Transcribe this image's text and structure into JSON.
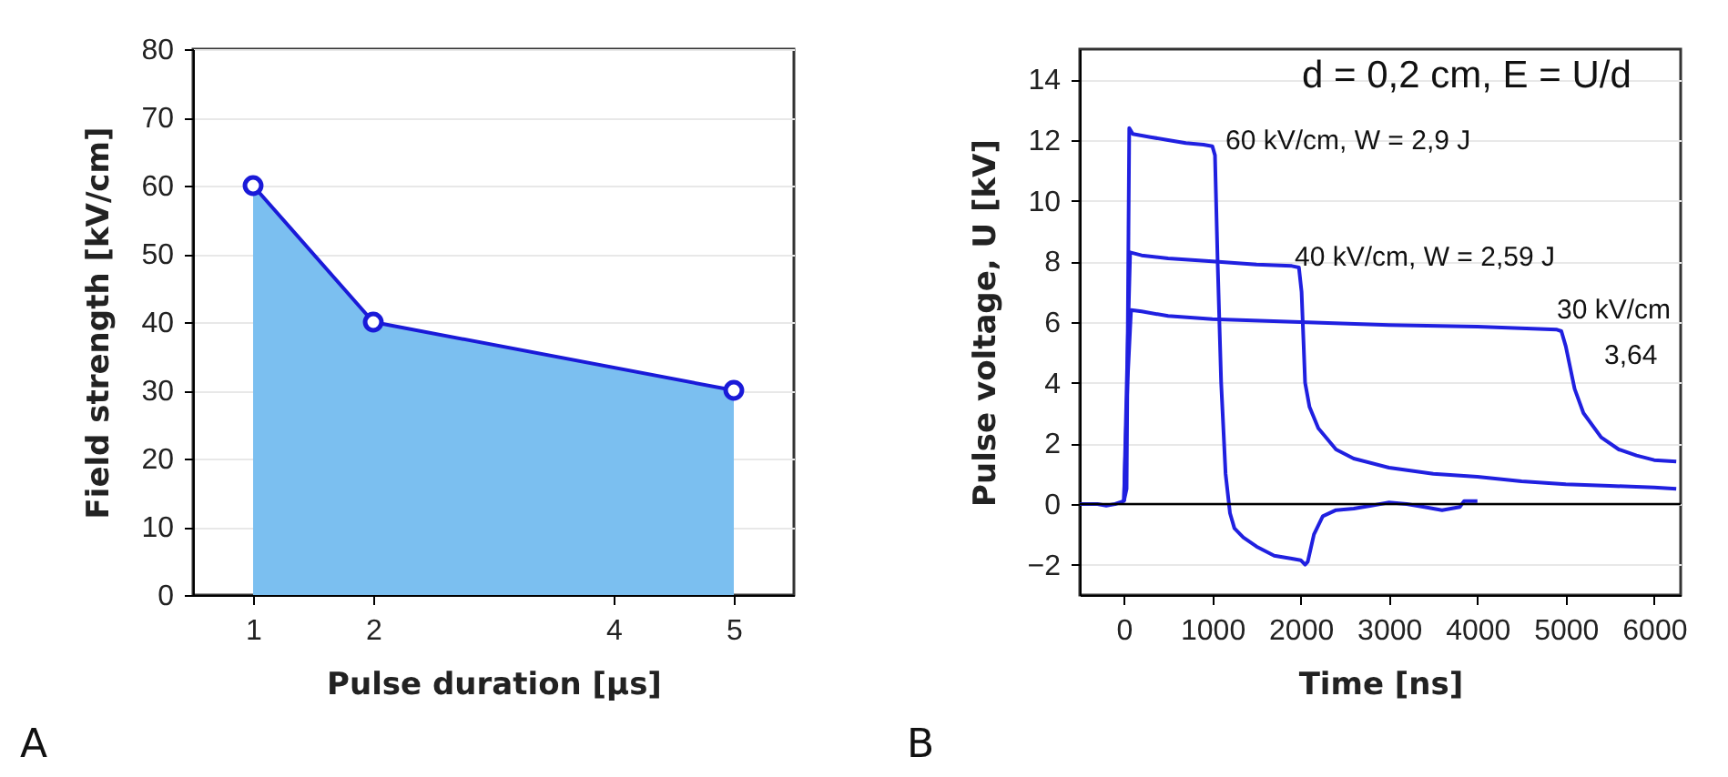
{
  "chart_data": [
    {
      "type": "area",
      "xlabel": "Pulse duration [μs]",
      "ylabel": "Field strength [kV/cm]",
      "annotations": [
        "A"
      ],
      "x": [
        1,
        2,
        5
      ],
      "xlim": [
        0.5,
        5.5
      ],
      "xticks": [
        1,
        2,
        4,
        5
      ],
      "ylim": [
        0,
        80
      ],
      "yticks": [
        0,
        10,
        20,
        30,
        40,
        50,
        60,
        70,
        80
      ],
      "grid": "y",
      "marker": "circle",
      "series": [
        {
          "color": "#7bbff0",
          "values": [
            60,
            40,
            30
          ]
        }
      ]
    },
    {
      "type": "line",
      "xlabel": "Time [ns]",
      "ylabel": "Pulse voltage, U [kV]",
      "xlim": [
        -500,
        6300
      ],
      "xticks": [
        0,
        1000,
        2000,
        3000,
        4000,
        5000,
        6000
      ],
      "ylim": [
        -3,
        15
      ],
      "yticks": [
        -2,
        0,
        2,
        4,
        6,
        8,
        10,
        12,
        14
      ],
      "grid": "y",
      "ref_lines": [
        {
          "axis": "y",
          "value": 0,
          "color": "#000000"
        }
      ],
      "annotations": [
        "d = 0,2 cm, E = U/d",
        "60 kV/cm, W = 2,9 J",
        "40 kV/cm, W = 2,59 J",
        "30 kV/cm",
        "3,64",
        "B"
      ],
      "series": [
        {
          "color": "#2020e0",
          "x": [
            -500,
            -300,
            -200,
            -100,
            0,
            30,
            60,
            100,
            300,
            500,
            700,
            900,
            1000,
            1030,
            1060,
            1100,
            1150,
            1200,
            1250,
            1350,
            1500,
            1700,
            1900,
            2000,
            2050,
            2080,
            2150,
            2250,
            2400,
            2600,
            2800,
            3000,
            3200,
            3400,
            3600,
            3800,
            3850,
            4000
          ],
          "values": [
            0,
            0,
            -0.05,
            0,
            0.1,
            0.5,
            12.4,
            12.2,
            12.1,
            12.0,
            11.9,
            11.85,
            11.8,
            11.5,
            8,
            4,
            1,
            -0.3,
            -0.8,
            -1.1,
            -1.4,
            -1.7,
            -1.8,
            -1.85,
            -2.0,
            -1.9,
            -1.0,
            -0.4,
            -0.2,
            -0.15,
            -0.05,
            0.05,
            0,
            -0.1,
            -0.2,
            -0.1,
            0.1,
            0.1
          ]
        },
        {
          "color": "#2020e0",
          "x": [
            0,
            40,
            70,
            200,
            500,
            1000,
            1500,
            1900,
            1980,
            2010,
            2050,
            2100,
            2200,
            2400,
            2600,
            3000,
            3500,
            4000,
            4500,
            5000,
            5500,
            6000,
            6250
          ],
          "values": [
            0.1,
            5,
            8.3,
            8.2,
            8.1,
            8.0,
            7.9,
            7.85,
            7.8,
            7,
            4,
            3.2,
            2.5,
            1.8,
            1.5,
            1.2,
            1.0,
            0.9,
            0.75,
            0.65,
            0.6,
            0.55,
            0.5
          ]
        },
        {
          "color": "#2020e0",
          "x": [
            0,
            40,
            80,
            200,
            500,
            1000,
            2000,
            3000,
            4000,
            4900,
            4950,
            5000,
            5100,
            5200,
            5400,
            5600,
            5800,
            6000,
            6250
          ],
          "values": [
            0.1,
            4,
            6.4,
            6.35,
            6.2,
            6.1,
            6.0,
            5.9,
            5.85,
            5.75,
            5.7,
            5.2,
            3.8,
            3.0,
            2.2,
            1.8,
            1.6,
            1.45,
            1.4
          ]
        }
      ]
    }
  ]
}
